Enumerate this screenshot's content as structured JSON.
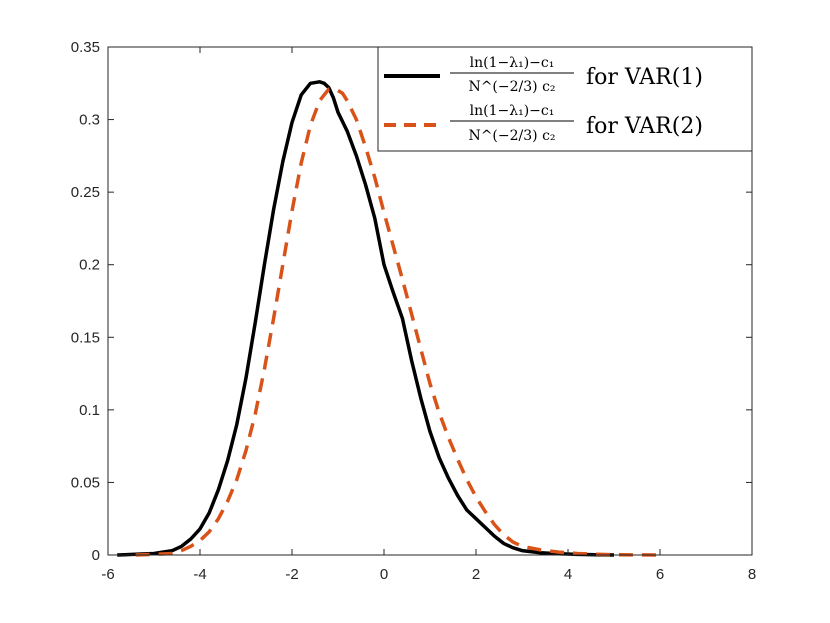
{
  "chart_data": {
    "type": "line",
    "xlim": [
      -6,
      8
    ],
    "ylim": [
      0,
      0.35
    ],
    "x_ticks": [
      "-6",
      "-4",
      "-2",
      "0",
      "2",
      "4",
      "6",
      "8"
    ],
    "y_ticks": [
      "0",
      "0.05",
      "0.1",
      "0.15",
      "0.2",
      "0.25",
      "0.3",
      "0.35"
    ],
    "grid": false,
    "legend_position": "top-right",
    "series": [
      {
        "name": "for VAR(1)",
        "legend_numerator": "ln(1−λ₁)−c₁",
        "legend_denominator": "N^(−2/3) c₂",
        "color": "#000000",
        "dash": "solid",
        "x": [
          -5.8,
          -5.4,
          -5.0,
          -4.6,
          -4.4,
          -4.2,
          -4.0,
          -3.8,
          -3.6,
          -3.4,
          -3.2,
          -3.0,
          -2.8,
          -2.6,
          -2.4,
          -2.2,
          -2.0,
          -1.8,
          -1.6,
          -1.4,
          -1.3,
          -1.2,
          -1.1,
          -1.0,
          -0.8,
          -0.6,
          -0.4,
          -0.2,
          0.0,
          0.2,
          0.4,
          0.6,
          0.8,
          1.0,
          1.2,
          1.4,
          1.6,
          1.8,
          2.0,
          2.2,
          2.4,
          2.6,
          2.8,
          3.0,
          3.4,
          3.8,
          4.2,
          4.6,
          5.0
        ],
        "y": [
          0.0,
          0.0005,
          0.001,
          0.003,
          0.006,
          0.011,
          0.018,
          0.029,
          0.045,
          0.065,
          0.09,
          0.122,
          0.16,
          0.2,
          0.238,
          0.271,
          0.298,
          0.317,
          0.325,
          0.326,
          0.325,
          0.322,
          0.315,
          0.305,
          0.292,
          0.275,
          0.255,
          0.232,
          0.2,
          0.181,
          0.163,
          0.134,
          0.108,
          0.085,
          0.067,
          0.053,
          0.041,
          0.031,
          0.025,
          0.019,
          0.013,
          0.008,
          0.005,
          0.003,
          0.0015,
          0.0008,
          0.0004,
          0.0002,
          0.0
        ]
      },
      {
        "name": "for VAR(2)",
        "legend_numerator": "ln(1−λ₁)−c₁",
        "legend_denominator": "N^(−2/3) c₂",
        "color": "#D95319",
        "dash": "dashed",
        "x": [
          -5.4,
          -5.0,
          -4.6,
          -4.4,
          -4.2,
          -4.0,
          -3.8,
          -3.6,
          -3.4,
          -3.2,
          -3.0,
          -2.8,
          -2.6,
          -2.4,
          -2.2,
          -2.0,
          -1.8,
          -1.6,
          -1.4,
          -1.2,
          -1.0,
          -0.9,
          -0.8,
          -0.6,
          -0.4,
          -0.2,
          0.0,
          0.2,
          0.4,
          0.6,
          0.8,
          1.0,
          1.2,
          1.4,
          1.6,
          1.8,
          2.0,
          2.2,
          2.4,
          2.6,
          2.8,
          3.0,
          3.4,
          3.8,
          4.2,
          4.6,
          5.0,
          5.5,
          6.0
        ],
        "y": [
          0.0,
          0.0005,
          0.001,
          0.003,
          0.006,
          0.01,
          0.016,
          0.025,
          0.037,
          0.052,
          0.072,
          0.097,
          0.128,
          0.163,
          0.2,
          0.237,
          0.27,
          0.296,
          0.313,
          0.321,
          0.32,
          0.318,
          0.313,
          0.3,
          0.281,
          0.26,
          0.236,
          0.213,
          0.19,
          0.166,
          0.142,
          0.118,
          0.098,
          0.081,
          0.066,
          0.052,
          0.04,
          0.03,
          0.021,
          0.014,
          0.009,
          0.006,
          0.0035,
          0.002,
          0.001,
          0.0005,
          0.0002,
          0.0001,
          0.0
        ]
      }
    ]
  }
}
